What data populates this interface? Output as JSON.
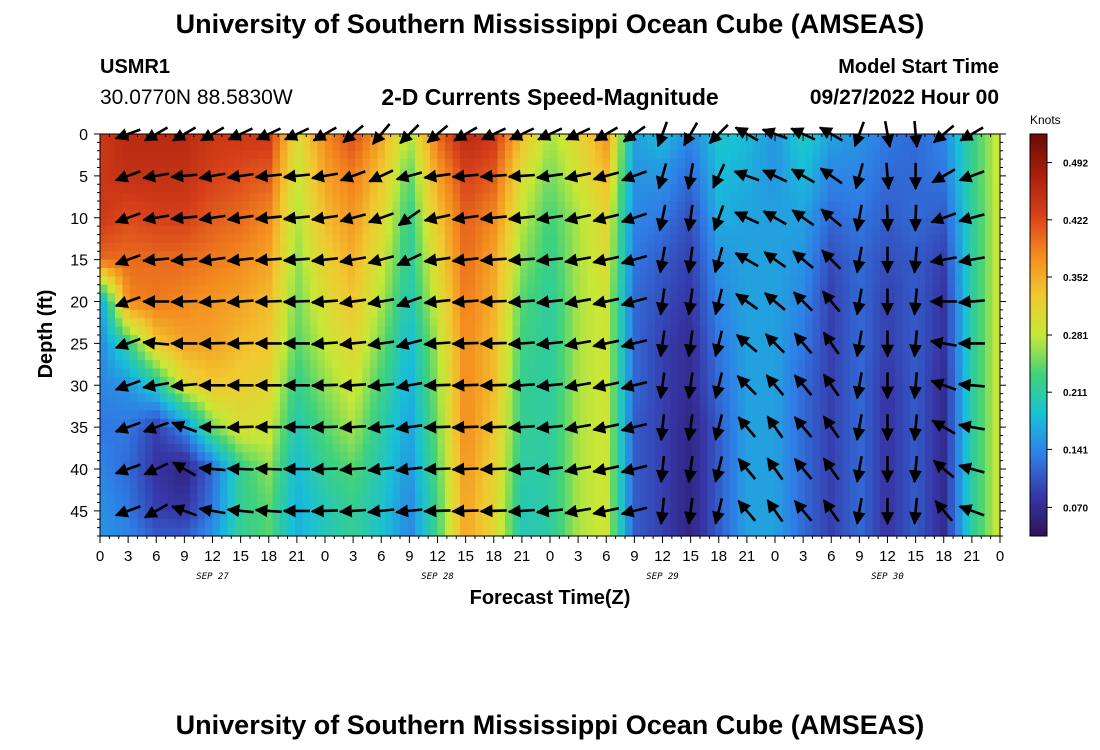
{
  "header": {
    "title": "University of Southern Mississippi Ocean Cube (AMSEAS)",
    "station": "USMR1",
    "coordinates": "30.0770N  88.5830W",
    "subtitle": "2-D Currents Speed-Magnitude",
    "start_label": "Model Start Time",
    "start_value": "09/27/2022 Hour 00"
  },
  "footer": {
    "title": "University of Southern Mississippi Ocean Cube (AMSEAS)"
  },
  "chart_data": {
    "type": "heatmap",
    "xlabel": "Forecast Time(Z)",
    "ylabel": "Depth (ft)",
    "x_range_hours": [
      0,
      96
    ],
    "y_range_ft": [
      0,
      48
    ],
    "x_tick_labels": [
      "0",
      "3",
      "6",
      "9",
      "12",
      "15",
      "18",
      "21",
      "0",
      "3",
      "6",
      "9",
      "12",
      "15",
      "18",
      "21",
      "0",
      "3",
      "6",
      "9",
      "12",
      "15",
      "18",
      "21",
      "0",
      "3",
      "6",
      "9",
      "12",
      "15",
      "18",
      "21",
      "0"
    ],
    "day_labels": [
      "SEP 27",
      "SEP 28",
      "SEP 29",
      "SEP 30"
    ],
    "y_ticks": [
      0,
      5,
      10,
      15,
      20,
      25,
      30,
      35,
      40,
      45
    ],
    "colorbar": {
      "units": "Knots",
      "labels": [
        "0.492",
        "0.422",
        "0.352",
        "0.281",
        "0.211",
        "0.141",
        "0.070"
      ],
      "range": [
        0.035,
        0.527
      ],
      "colors": [
        "#2b1458",
        "#3737a8",
        "#2f7de6",
        "#18c0d8",
        "#3fd27c",
        "#c7e836",
        "#f2c830",
        "#f48a1f",
        "#d6401a",
        "#a81e0c",
        "#6a0b05"
      ]
    },
    "speed_profiles": {
      "depths_ft": [
        0,
        5,
        10,
        15,
        20,
        25,
        30,
        35,
        40,
        45,
        48
      ],
      "times_h": [
        0,
        3,
        6,
        9,
        12,
        15,
        18,
        21,
        24,
        27,
        30,
        33,
        36,
        39,
        42,
        45,
        48,
        51,
        54,
        57,
        60,
        63,
        66,
        69,
        72,
        75,
        78,
        81,
        84,
        87,
        90,
        93,
        96
      ],
      "speed_knots": [
        [
          0.44,
          0.44,
          0.44,
          0.4,
          0.15,
          0.14,
          0.14,
          0.13,
          0.14,
          0.15,
          0.15
        ],
        [
          0.46,
          0.45,
          0.42,
          0.4,
          0.38,
          0.22,
          0.15,
          0.13,
          0.12,
          0.13,
          0.14
        ],
        [
          0.46,
          0.45,
          0.43,
          0.4,
          0.39,
          0.33,
          0.2,
          0.09,
          0.08,
          0.09,
          0.11
        ],
        [
          0.46,
          0.45,
          0.43,
          0.4,
          0.38,
          0.36,
          0.3,
          0.14,
          0.06,
          0.08,
          0.11
        ],
        [
          0.44,
          0.43,
          0.41,
          0.39,
          0.37,
          0.36,
          0.33,
          0.25,
          0.12,
          0.13,
          0.15
        ],
        [
          0.44,
          0.42,
          0.4,
          0.38,
          0.36,
          0.34,
          0.32,
          0.3,
          0.22,
          0.22,
          0.22
        ],
        [
          0.44,
          0.41,
          0.38,
          0.36,
          0.34,
          0.33,
          0.31,
          0.29,
          0.26,
          0.24,
          0.24
        ],
        [
          0.3,
          0.28,
          0.27,
          0.26,
          0.25,
          0.24,
          0.22,
          0.2,
          0.18,
          0.17,
          0.17
        ],
        [
          0.38,
          0.36,
          0.34,
          0.32,
          0.3,
          0.28,
          0.26,
          0.24,
          0.22,
          0.2,
          0.2
        ],
        [
          0.42,
          0.39,
          0.37,
          0.35,
          0.33,
          0.31,
          0.29,
          0.27,
          0.24,
          0.22,
          0.22
        ],
        [
          0.36,
          0.33,
          0.31,
          0.29,
          0.27,
          0.25,
          0.23,
          0.21,
          0.2,
          0.19,
          0.19
        ],
        [
          0.27,
          0.24,
          0.22,
          0.21,
          0.2,
          0.18,
          0.17,
          0.16,
          0.15,
          0.14,
          0.14
        ],
        [
          0.4,
          0.36,
          0.33,
          0.31,
          0.29,
          0.27,
          0.26,
          0.25,
          0.24,
          0.23,
          0.23
        ],
        [
          0.46,
          0.43,
          0.41,
          0.4,
          0.39,
          0.38,
          0.38,
          0.38,
          0.37,
          0.36,
          0.36
        ],
        [
          0.44,
          0.41,
          0.38,
          0.36,
          0.35,
          0.34,
          0.34,
          0.33,
          0.32,
          0.31,
          0.31
        ],
        [
          0.34,
          0.3,
          0.28,
          0.26,
          0.24,
          0.23,
          0.22,
          0.22,
          0.21,
          0.2,
          0.2
        ],
        [
          0.27,
          0.25,
          0.23,
          0.22,
          0.21,
          0.21,
          0.21,
          0.21,
          0.21,
          0.21,
          0.21
        ],
        [
          0.31,
          0.29,
          0.27,
          0.27,
          0.27,
          0.27,
          0.27,
          0.27,
          0.27,
          0.27,
          0.27
        ],
        [
          0.37,
          0.34,
          0.31,
          0.3,
          0.29,
          0.29,
          0.29,
          0.29,
          0.29,
          0.29,
          0.29
        ],
        [
          0.16,
          0.15,
          0.14,
          0.13,
          0.12,
          0.12,
          0.12,
          0.11,
          0.11,
          0.11,
          0.11
        ],
        [
          0.18,
          0.15,
          0.13,
          0.11,
          0.1,
          0.09,
          0.09,
          0.09,
          0.09,
          0.09,
          0.09
        ],
        [
          0.14,
          0.12,
          0.1,
          0.09,
          0.08,
          0.07,
          0.07,
          0.06,
          0.06,
          0.06,
          0.06
        ],
        [
          0.19,
          0.18,
          0.17,
          0.15,
          0.14,
          0.13,
          0.12,
          0.11,
          0.11,
          0.11,
          0.11
        ],
        [
          0.18,
          0.17,
          0.16,
          0.16,
          0.16,
          0.16,
          0.16,
          0.16,
          0.16,
          0.16,
          0.16
        ],
        [
          0.15,
          0.15,
          0.16,
          0.16,
          0.16,
          0.16,
          0.16,
          0.16,
          0.16,
          0.16,
          0.16
        ],
        [
          0.2,
          0.18,
          0.16,
          0.15,
          0.14,
          0.13,
          0.12,
          0.12,
          0.12,
          0.12,
          0.12
        ],
        [
          0.16,
          0.14,
          0.12,
          0.1,
          0.09,
          0.09,
          0.09,
          0.09,
          0.09,
          0.09,
          0.09
        ],
        [
          0.15,
          0.14,
          0.13,
          0.12,
          0.12,
          0.12,
          0.12,
          0.12,
          0.12,
          0.12,
          0.12
        ],
        [
          0.13,
          0.12,
          0.11,
          0.1,
          0.09,
          0.09,
          0.08,
          0.08,
          0.08,
          0.08,
          0.08
        ],
        [
          0.12,
          0.12,
          0.12,
          0.11,
          0.11,
          0.11,
          0.11,
          0.11,
          0.11,
          0.11,
          0.11
        ],
        [
          0.14,
          0.13,
          0.11,
          0.09,
          0.08,
          0.08,
          0.07,
          0.07,
          0.07,
          0.07,
          0.07
        ],
        [
          0.22,
          0.22,
          0.21,
          0.21,
          0.21,
          0.21,
          0.21,
          0.21,
          0.21,
          0.21,
          0.21
        ],
        [
          0.29,
          0.29,
          0.29,
          0.29,
          0.29,
          0.29,
          0.29,
          0.29,
          0.29,
          0.29,
          0.29
        ]
      ]
    },
    "vector_grid": {
      "times_h": [
        3,
        6,
        9,
        12,
        15,
        18,
        21,
        24,
        27,
        30,
        33,
        36,
        39,
        42,
        45,
        48,
        51,
        54,
        57,
        60,
        63,
        66,
        69,
        72,
        75,
        78,
        81,
        84,
        87,
        90,
        93
      ],
      "depths_ft": [
        0,
        5,
        10,
        15,
        20,
        25,
        30,
        35,
        40,
        45
      ],
      "direction_deg": [
        [
          250,
          250,
          250,
          250,
          250,
          250,
          250,
          250,
          250,
          250
        ],
        [
          240,
          260,
          260,
          265,
          270,
          275,
          260,
          250,
          245,
          240
        ],
        [
          240,
          265,
          265,
          265,
          268,
          270,
          265,
          290,
          300,
          290
        ],
        [
          240,
          260,
          262,
          262,
          266,
          268,
          270,
          270,
          275,
          280
        ],
        [
          245,
          262,
          262,
          264,
          266,
          268,
          270,
          268,
          272,
          276
        ],
        [
          245,
          264,
          264,
          266,
          268,
          270,
          270,
          270,
          272,
          274
        ],
        [
          245,
          264,
          264,
          266,
          268,
          270,
          270,
          270,
          270,
          270
        ],
        [
          240,
          260,
          262,
          264,
          266,
          266,
          268,
          268,
          268,
          268
        ],
        [
          230,
          250,
          255,
          260,
          262,
          264,
          266,
          266,
          266,
          266
        ],
        [
          220,
          245,
          250,
          255,
          260,
          262,
          264,
          264,
          264,
          264
        ],
        [
          225,
          255,
          235,
          245,
          250,
          255,
          260,
          262,
          264,
          264
        ],
        [
          230,
          262,
          258,
          262,
          264,
          266,
          268,
          268,
          268,
          268
        ],
        [
          240,
          265,
          262,
          264,
          266,
          268,
          268,
          268,
          268,
          268
        ],
        [
          245,
          266,
          264,
          266,
          268,
          268,
          268,
          268,
          268,
          268
        ],
        [
          245,
          266,
          264,
          266,
          266,
          266,
          266,
          266,
          266,
          266
        ],
        [
          245,
          262,
          262,
          264,
          264,
          264,
          264,
          264,
          264,
          264
        ],
        [
          245,
          258,
          258,
          260,
          260,
          260,
          260,
          260,
          260,
          260
        ],
        [
          240,
          255,
          256,
          258,
          258,
          258,
          258,
          258,
          258,
          258
        ],
        [
          235,
          250,
          252,
          254,
          255,
          256,
          256,
          256,
          256,
          256
        ],
        [
          200,
          196,
          192,
          190,
          188,
          188,
          188,
          186,
          186,
          186
        ],
        [
          210,
          190,
          188,
          188,
          188,
          188,
          188,
          188,
          188,
          188
        ],
        [
          225,
          205,
          200,
          196,
          194,
          194,
          194,
          194,
          194,
          194
        ],
        [
          300,
          290,
          295,
          300,
          305,
          310,
          315,
          320,
          320,
          320
        ],
        [
          290,
          295,
          300,
          305,
          310,
          315,
          320,
          325,
          325,
          325
        ],
        [
          295,
          300,
          305,
          310,
          315,
          320,
          320,
          320,
          320,
          320
        ],
        [
          300,
          305,
          310,
          315,
          320,
          325,
          325,
          325,
          325,
          325
        ],
        [
          200,
          195,
          190,
          190,
          190,
          190,
          190,
          190,
          190,
          190
        ],
        [
          170,
          175,
          178,
          180,
          180,
          180,
          180,
          180,
          180,
          180
        ],
        [
          175,
          180,
          182,
          185,
          185,
          185,
          185,
          185,
          185,
          185
        ],
        [
          230,
          240,
          250,
          260,
          270,
          280,
          290,
          300,
          310,
          320
        ],
        [
          240,
          250,
          255,
          260,
          265,
          270,
          275,
          280,
          285,
          290
        ]
      ]
    },
    "grid": false
  }
}
